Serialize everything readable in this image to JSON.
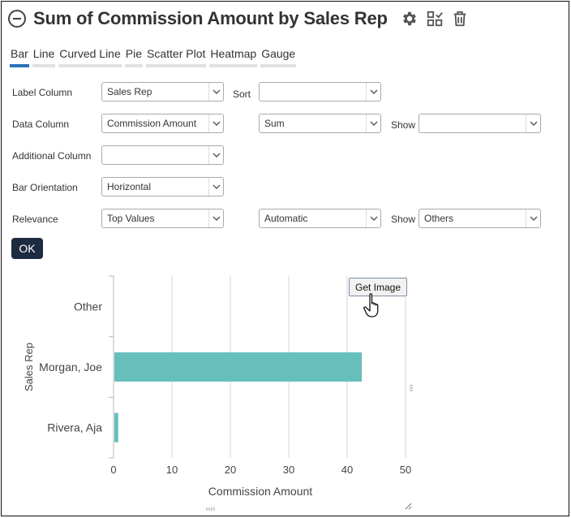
{
  "header": {
    "title": "Sum of Commission Amount by Sales Rep",
    "icons": [
      "minus-circle-icon",
      "gear-icon",
      "layout-icon",
      "trash-icon"
    ]
  },
  "tabs": [
    {
      "label": "Bar",
      "active": true
    },
    {
      "label": "Line",
      "active": false
    },
    {
      "label": "Curved Line",
      "active": false
    },
    {
      "label": "Pie",
      "active": false
    },
    {
      "label": "Scatter Plot",
      "active": false
    },
    {
      "label": "Heatmap",
      "active": false
    },
    {
      "label": "Gauge",
      "active": false
    }
  ],
  "form": {
    "label_column": {
      "label": "Label Column",
      "value": "Sales Rep"
    },
    "sort": {
      "label": "Sort",
      "value": ""
    },
    "data_column": {
      "label": "Data Column",
      "value": "Commission Amount"
    },
    "aggregate": {
      "value": "Sum"
    },
    "show1": {
      "label": "Show",
      "value": ""
    },
    "additional_column": {
      "label": "Additional Column",
      "value": ""
    },
    "bar_orientation": {
      "label": "Bar Orientation",
      "value": "Horizontal"
    },
    "relevance": {
      "label": "Relevance",
      "value": "Top Values"
    },
    "relevance_mode": {
      "value": "Automatic"
    },
    "show2": {
      "label": "Show",
      "value": "Others"
    },
    "ok_label": "OK"
  },
  "chart_data": {
    "type": "bar",
    "orientation": "horizontal",
    "categories": [
      "Other",
      "Morgan, Joe",
      "Rivera, Aja"
    ],
    "values": [
      0,
      42.5,
      0.8
    ],
    "xlabel": "Commission Amount",
    "ylabel": "Sales Rep",
    "xlim": [
      0,
      50
    ],
    "xticks": [
      0,
      10,
      20,
      30,
      40,
      50
    ],
    "grid": true,
    "bar_color": "#66bfba"
  },
  "get_image_label": "Get Image"
}
